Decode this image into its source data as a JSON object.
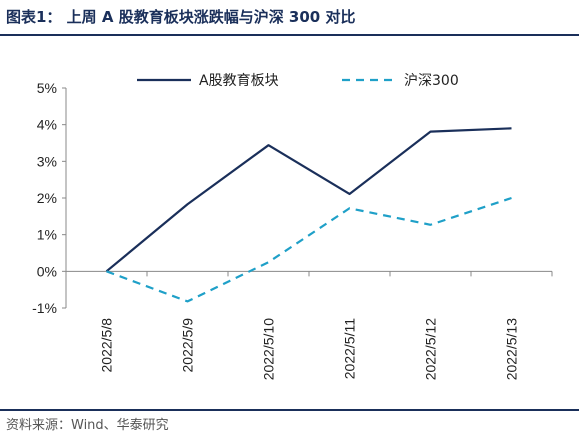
{
  "header": {
    "title": "图表1：  上周 A 股教育板块涨跌幅与沪深 300 对比"
  },
  "footer": {
    "source": "资料来源：Wind、华泰研究"
  },
  "chart_data": {
    "type": "line",
    "title": "",
    "xlabel": "",
    "ylabel": "",
    "categories": [
      "2022/5/8",
      "2022/5/9",
      "2022/5/10",
      "2022/5/11",
      "2022/5/12",
      "2022/5/13"
    ],
    "y_ticks": [
      "5%",
      "4%",
      "3%",
      "2%",
      "1%",
      "0%",
      "-1%"
    ],
    "ylim": [
      -1,
      5
    ],
    "legend_position": "top",
    "grid": false,
    "series": [
      {
        "name": "A股教育板块",
        "values": [
          0.0,
          1.83,
          3.44,
          2.11,
          3.81,
          3.9
        ],
        "color": "#1a2f5a",
        "style": "solid"
      },
      {
        "name": "沪深300",
        "values": [
          0.0,
          -0.82,
          0.25,
          1.72,
          1.27,
          2.0
        ],
        "color": "#1fa0c8",
        "style": "dashed"
      }
    ]
  }
}
